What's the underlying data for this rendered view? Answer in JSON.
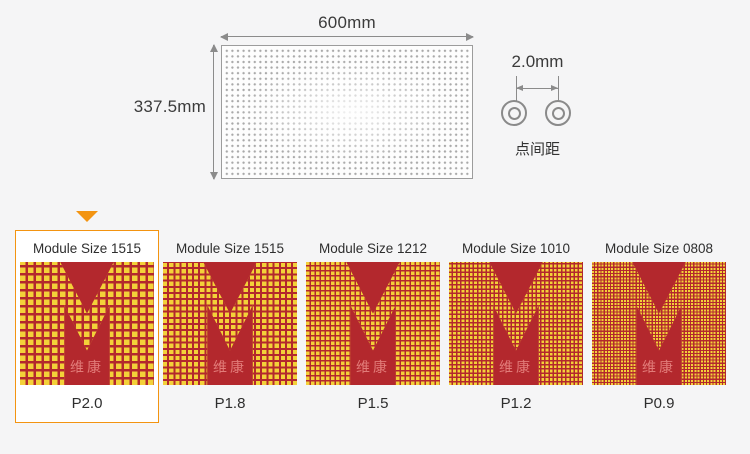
{
  "diagram": {
    "width_label": "600mm",
    "height_label": "337.5mm",
    "pitch": {
      "value_label": "2.0mm",
      "caption": "点间距"
    }
  },
  "modules": [
    {
      "title": "Module Size 1515",
      "pitch": "P2.0",
      "watermark": "维康",
      "selected": true
    },
    {
      "title": "Module Size 1515",
      "pitch": "P1.8",
      "watermark": "维康",
      "selected": false
    },
    {
      "title": "Module Size 1212",
      "pitch": "P1.5",
      "watermark": "维康",
      "selected": false
    },
    {
      "title": "Module Size 1010",
      "pitch": "P1.2",
      "watermark": "维康",
      "selected": false
    },
    {
      "title": "Module Size 0808",
      "pitch": "P0.9",
      "watermark": "维康",
      "selected": false
    }
  ],
  "colors": {
    "accent_orange": "#f39411",
    "module_red": "#b3282d",
    "dot_yellow": "#f3d139",
    "page_background": "#f5f5f6"
  }
}
